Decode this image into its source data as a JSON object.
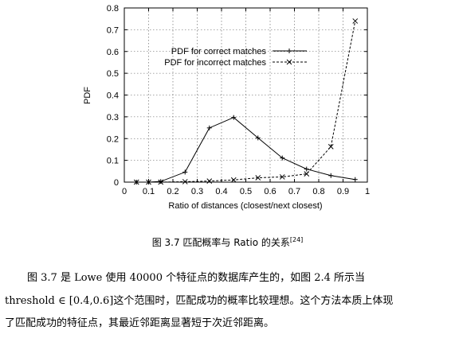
{
  "chart_data": {
    "type": "line",
    "xlabel": "Ratio of distances (closest/next closest)",
    "ylabel": "PDF",
    "xlim": [
      0,
      1
    ],
    "ylim": [
      0,
      0.8
    ],
    "xticks": [
      "0",
      "0.1",
      "0.2",
      "0.3",
      "0.4",
      "0.5",
      "0.6",
      "0.7",
      "0.8",
      "0.9",
      "1"
    ],
    "yticks": [
      "0",
      "0.1",
      "0.2",
      "0.3",
      "0.4",
      "0.5",
      "0.6",
      "0.7",
      "0.8"
    ],
    "grid": true,
    "legend_position": "top-left",
    "x": [
      0.05,
      0.1,
      0.15,
      0.25,
      0.35,
      0.45,
      0.55,
      0.65,
      0.75,
      0.85,
      0.95
    ],
    "series": [
      {
        "name": "PDF for correct matches",
        "style": "solid",
        "marker": "plus",
        "values": [
          0.0,
          0.0,
          0.003,
          0.046,
          0.249,
          0.297,
          0.203,
          0.111,
          0.06,
          0.03,
          0.012
        ]
      },
      {
        "name": "PDF for incorrect matches",
        "style": "dashed",
        "marker": "cross",
        "values": [
          0.0,
          0.0,
          0.0,
          0.002,
          0.005,
          0.01,
          0.02,
          0.024,
          0.038,
          0.163,
          0.74
        ]
      }
    ]
  },
  "figure": {
    "caption_label": "图 3.7",
    "caption_text": "匹配概率与 Ratio 的关系",
    "caption_ref": "[24]"
  },
  "paragraph": {
    "line1": "图 3.7 是 Lowe 使用 40000 个特征点的数据库产生的，如图 2.4 所示当",
    "line2": "threshold ∈ [0.4,0.6]这个范围时，匹配成功的概率比较理想。这个方法本质上体现",
    "line3": "了匹配成功的特征点，其最近邻距离显著短于次近邻距离。"
  }
}
